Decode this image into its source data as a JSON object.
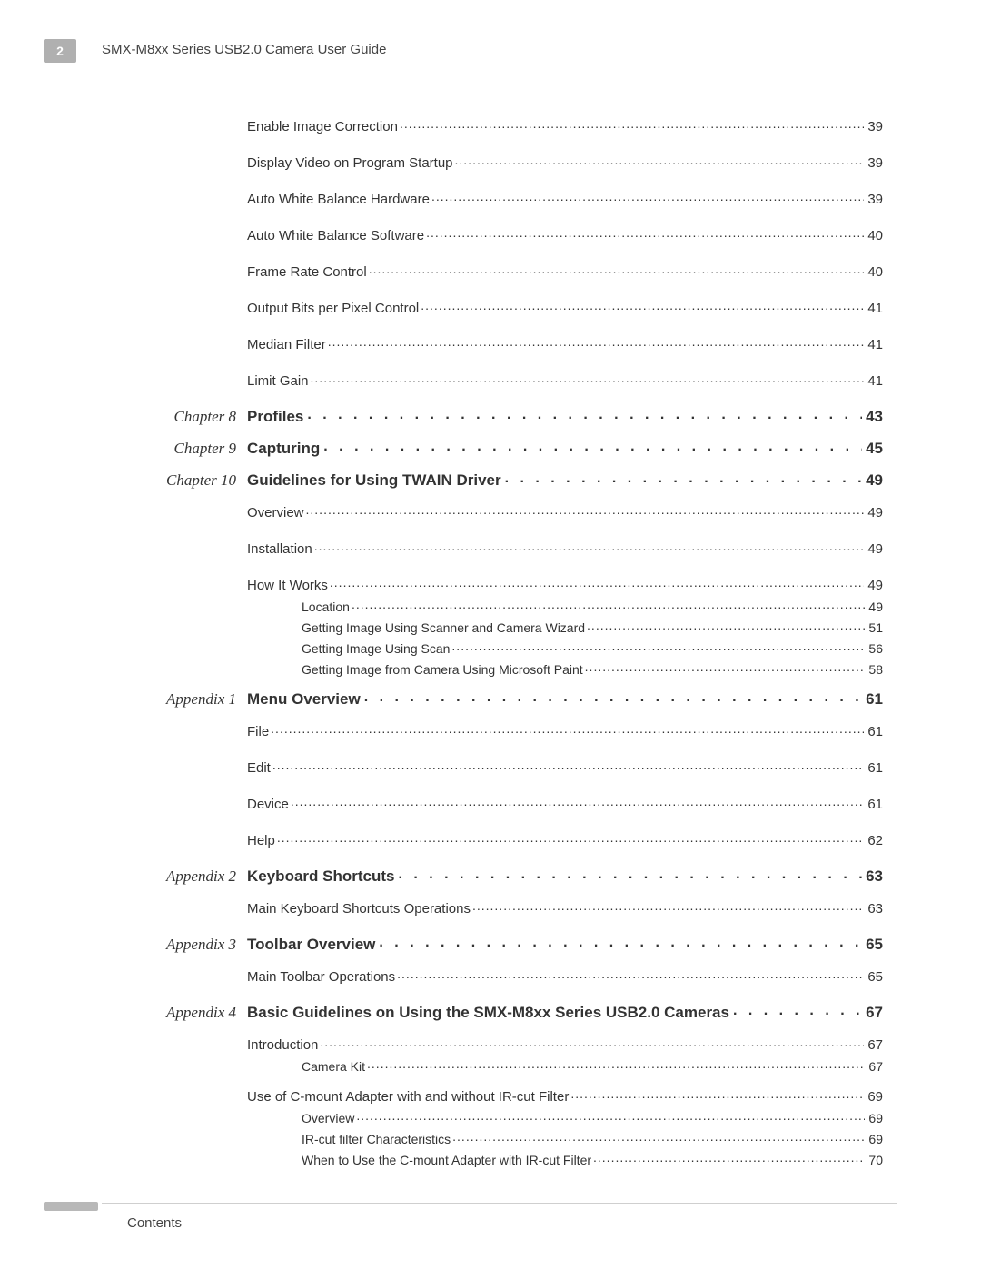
{
  "page_number": "2",
  "header_title": "SMX-M8xx Series USB2.0 Camera User Guide",
  "footer_label": "Contents",
  "colors": {
    "badge_bg": "#b0b0b0",
    "rule": "#cfcfcf",
    "text": "#333333"
  },
  "toc": [
    {
      "type": "entry",
      "level": 1,
      "title": "Enable Image Correction",
      "page": "39"
    },
    {
      "type": "entry",
      "level": 1,
      "title": "Display Video on Program Startup",
      "page": "39"
    },
    {
      "type": "entry",
      "level": 1,
      "title": "Auto White Balance Hardware",
      "page": "39"
    },
    {
      "type": "entry",
      "level": 1,
      "title": "Auto White Balance Software",
      "page": "40"
    },
    {
      "type": "entry",
      "level": 1,
      "title": "Frame Rate Control",
      "page": "40"
    },
    {
      "type": "entry",
      "level": 1,
      "title": "Output Bits per Pixel Control",
      "page": "41"
    },
    {
      "type": "entry",
      "level": 1,
      "title": "Median Filter",
      "page": "41"
    },
    {
      "type": "entry",
      "level": 1,
      "title": "Limit Gain",
      "page": "41"
    },
    {
      "type": "chapter",
      "label": "Chapter 8",
      "title": "Profiles",
      "page": "43"
    },
    {
      "type": "chapter",
      "label": "Chapter 9",
      "title": "Capturing",
      "page": "45"
    },
    {
      "type": "chapter",
      "label": "Chapter 10",
      "title": "Guidelines for Using TWAIN Driver",
      "page": "49"
    },
    {
      "type": "entry",
      "level": 1,
      "title": "Overview",
      "page": "49"
    },
    {
      "type": "entry",
      "level": 1,
      "title": "Installation",
      "page": "49"
    },
    {
      "type": "entry",
      "level": 1,
      "title": "How It Works",
      "page": "49"
    },
    {
      "type": "entry",
      "level": 2,
      "title": "Location",
      "page": "49"
    },
    {
      "type": "entry",
      "level": 2,
      "title": "Getting Image Using Scanner and Camera Wizard",
      "page": "51"
    },
    {
      "type": "entry",
      "level": 2,
      "title": "Getting Image Using Scan",
      "page": "56"
    },
    {
      "type": "entry",
      "level": 2,
      "title": "Getting Image from Camera Using Microsoft Paint",
      "page": "58"
    },
    {
      "type": "chapter",
      "label": "Appendix 1",
      "title": "Menu Overview",
      "page": "61"
    },
    {
      "type": "entry",
      "level": 1,
      "title": "File",
      "page": "61"
    },
    {
      "type": "entry",
      "level": 1,
      "title": "Edit",
      "page": "61"
    },
    {
      "type": "entry",
      "level": 1,
      "title": "Device",
      "page": "61"
    },
    {
      "type": "entry",
      "level": 1,
      "title": "Help",
      "page": "62"
    },
    {
      "type": "chapter",
      "label": "Appendix 2",
      "title": "Keyboard Shortcuts",
      "page": "63"
    },
    {
      "type": "entry",
      "level": 1,
      "title": "Main Keyboard Shortcuts Operations",
      "page": "63"
    },
    {
      "type": "chapter",
      "label": "Appendix 3",
      "title": "Toolbar Overview",
      "page": "65"
    },
    {
      "type": "entry",
      "level": 1,
      "title": "Main Toolbar Operations",
      "page": "65"
    },
    {
      "type": "chapter",
      "label": "Appendix 4",
      "title": "Basic Guidelines on Using the SMX-M8xx Series USB2.0 Cameras",
      "page": "67"
    },
    {
      "type": "entry",
      "level": 1,
      "title": "Introduction",
      "page": "67"
    },
    {
      "type": "entry",
      "level": 2,
      "title": "Camera Kit",
      "page": "67"
    },
    {
      "type": "entry",
      "level": 1,
      "title": "Use of C-mount Adapter with and without IR-cut Filter",
      "page": "69"
    },
    {
      "type": "entry",
      "level": 2,
      "title": "Overview",
      "page": "69"
    },
    {
      "type": "entry",
      "level": 2,
      "title": "IR-cut filter Characteristics",
      "page": "69"
    },
    {
      "type": "entry",
      "level": 2,
      "title": "When to Use the C-mount Adapter with IR-cut Filter",
      "page": "70"
    }
  ]
}
